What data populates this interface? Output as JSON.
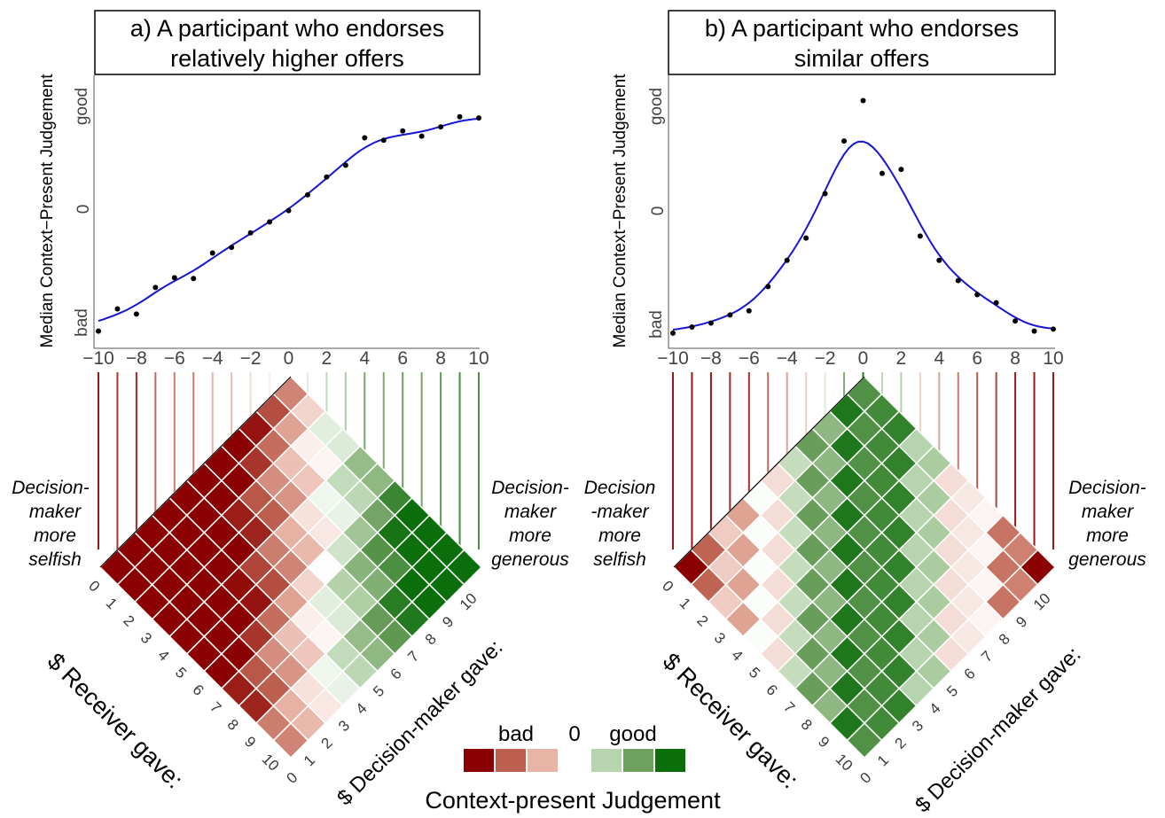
{
  "chart_data": [
    {
      "type": "scatter",
      "title_line1": "a) A participant who endorses",
      "title_line2": "relatively higher offers",
      "ylabel": "Median Context−Present Judgement",
      "yticks": [
        "bad",
        "0",
        "good"
      ],
      "xticks": [
        "−10",
        "−8",
        "−6",
        "−4",
        "−2",
        "0",
        "2",
        "4",
        "6",
        "8",
        "10"
      ],
      "xlim": [
        -10,
        10
      ],
      "ylim": [
        -3.2,
        3.2
      ],
      "points_x": [
        -10,
        -9,
        -8,
        -7,
        -6,
        -5,
        -4,
        -3,
        -2,
        -1,
        0,
        1,
        2,
        3,
        4,
        5,
        6,
        7,
        8,
        9,
        10
      ],
      "points_y": [
        -2.95,
        -2.4,
        -2.53,
        -1.87,
        -1.63,
        -1.65,
        -1.02,
        -0.88,
        -0.52,
        -0.25,
        0.03,
        0.42,
        0.86,
        1.15,
        1.83,
        1.77,
        2.0,
        1.87,
        2.1,
        2.35,
        2.32
      ],
      "fit_curve": "smooth",
      "left_label": [
        "Decision-",
        "maker",
        "more",
        "selfish"
      ],
      "right_label": [
        "Decision-",
        "maker",
        "more",
        "generous"
      ],
      "receiver_label": "$ Receiver gave:",
      "decision_label": "$ Decision-maker gave:",
      "diamond_ticks": [
        "0",
        "1",
        "2",
        "3",
        "4",
        "5",
        "6",
        "7",
        "8",
        "9",
        "10"
      ]
    },
    {
      "type": "scatter",
      "title_line1": "b) A participant who endorses",
      "title_line2": "similar offers",
      "ylabel": "Median Context−Present Judgement",
      "yticks": [
        "bad",
        "0",
        "good"
      ],
      "xticks": [
        "−10",
        "−8",
        "−6",
        "−4",
        "−2",
        "0",
        "2",
        "4",
        "6",
        "8",
        "10"
      ],
      "xlim": [
        -10,
        10
      ],
      "ylim": [
        -3.2,
        3.2
      ],
      "points_x": [
        -10,
        -9,
        -8,
        -7,
        -6,
        -5,
        -4,
        -3,
        -2,
        -1,
        0,
        1,
        2,
        3,
        4,
        5,
        6,
        7,
        8,
        9,
        10
      ],
      "points_y": [
        -3.0,
        -2.85,
        -2.75,
        -2.55,
        -2.45,
        -1.85,
        -1.2,
        -0.65,
        0.45,
        1.75,
        2.75,
        0.95,
        1.05,
        -0.6,
        -1.2,
        -1.7,
        -2.05,
        -2.25,
        -2.7,
        -2.95,
        -2.9
      ],
      "fit_curve": "smooth",
      "left_label": [
        "Decision",
        "-maker",
        "more",
        "selfish"
      ],
      "right_label": [
        "Decision-",
        "maker",
        "more",
        "generous"
      ],
      "receiver_label": "$ Receiver gave:",
      "decision_label": "$ Decision-maker gave:",
      "diamond_ticks": [
        "0",
        "1",
        "2",
        "3",
        "4",
        "5",
        "6",
        "7",
        "8",
        "9",
        "10"
      ]
    }
  ],
  "legend": {
    "labels": [
      "bad",
      "0",
      "good"
    ],
    "title": "Context-present Judgement",
    "colors": [
      "#8b0000",
      "#bd5f4e",
      "#e8b4a6",
      "#ffffff",
      "#b6d4ad",
      "#6ea05e",
      "#0a6e0a"
    ]
  },
  "colors": {
    "fit_line": "#1515d6",
    "points": "#000000",
    "bad": "#8b0000",
    "good": "#0a6e0a"
  }
}
